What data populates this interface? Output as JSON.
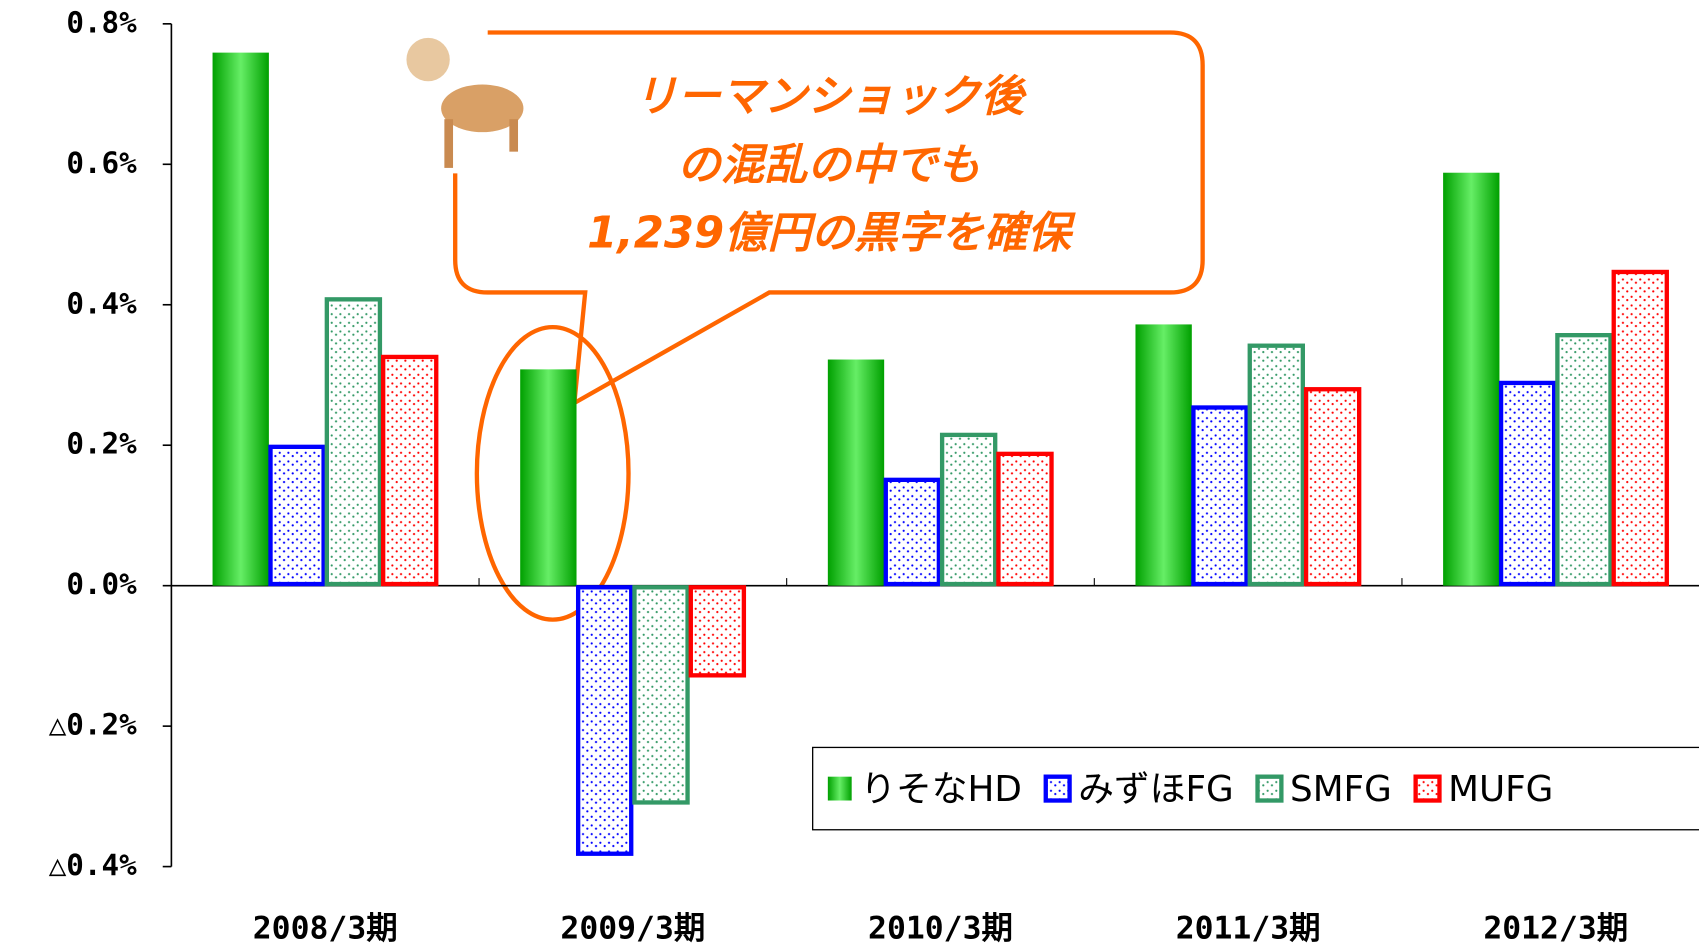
{
  "chart_data": {
    "type": "bar",
    "categories": [
      "2008/3期",
      "2009/3期",
      "2010/3期",
      "2011/3期",
      "2012/3期"
    ],
    "series": [
      {
        "name": "りそなHD",
        "color": "#00a000",
        "values": [
          0.759,
          0.308,
          0.322,
          0.372,
          0.588
        ]
      },
      {
        "name": "みずほFG",
        "color": "#0000ff",
        "values": [
          0.2,
          -0.384,
          0.153,
          0.256,
          0.291
        ]
      },
      {
        "name": "SMFG",
        "color": "#339966",
        "values": [
          0.41,
          -0.311,
          0.217,
          0.344,
          0.359
        ]
      },
      {
        "name": "MUFG",
        "color": "#ff0000",
        "values": [
          0.328,
          -0.13,
          0.19,
          0.282,
          0.449
        ]
      }
    ],
    "ylim": [
      -0.4,
      0.8
    ],
    "yticks": [
      {
        "value": 0.8,
        "label": "0.8%"
      },
      {
        "value": 0.6,
        "label": "0.6%"
      },
      {
        "value": 0.4,
        "label": "0.4%"
      },
      {
        "value": 0.2,
        "label": "0.2%"
      },
      {
        "value": 0.0,
        "label": "0.0%"
      },
      {
        "value": -0.2,
        "label": "△0.2%"
      },
      {
        "value": -0.4,
        "label": "△0.4%"
      }
    ],
    "legend": "lower right",
    "annotation": [
      "リーマンショック後",
      "の混乱の中でも",
      "1,239億円の黒字を確保"
    ]
  }
}
